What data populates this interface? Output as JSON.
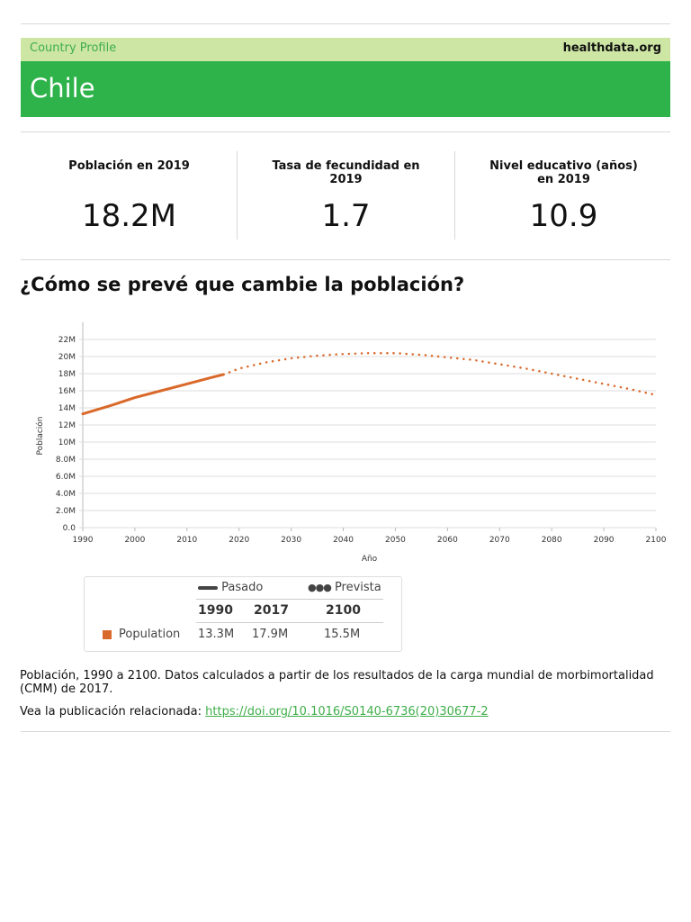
{
  "header": {
    "label": "Country Profile",
    "site": "healthdata.org",
    "country": "Chile"
  },
  "stats": [
    {
      "label": "Población en 2019",
      "value": "18.2M"
    },
    {
      "label": "Tasa de fecundidad en 2019",
      "value": "1.7"
    },
    {
      "label": "Nivel educativo (años) en 2019",
      "value": "10.9"
    }
  ],
  "section_title": "¿Cómo se prevé que cambie la población?",
  "chart_data": {
    "type": "line",
    "xlabel": "Año",
    "ylabel": "Población",
    "x": [
      1990,
      1995,
      2000,
      2005,
      2010,
      2015,
      2017,
      2020,
      2025,
      2030,
      2035,
      2040,
      2045,
      2050,
      2055,
      2060,
      2065,
      2070,
      2075,
      2080,
      2085,
      2090,
      2095,
      2100
    ],
    "series": [
      {
        "name": "Pasado",
        "color": "#d9692a",
        "style": "solid",
        "values": [
          13300000,
          14200000,
          15200000,
          16000000,
          16800000,
          17600000,
          17900000,
          null,
          null,
          null,
          null,
          null,
          null,
          null,
          null,
          null,
          null,
          null,
          null,
          null,
          null,
          null,
          null,
          null
        ]
      },
      {
        "name": "Prevista",
        "color": "#d9692a",
        "style": "dotted",
        "values": [
          null,
          null,
          null,
          null,
          null,
          null,
          17900000,
          18600000,
          19300000,
          19800000,
          20100000,
          20300000,
          20400000,
          20400000,
          20200000,
          19900000,
          19600000,
          19100000,
          18600000,
          18000000,
          17400000,
          16800000,
          16200000,
          15500000
        ]
      }
    ],
    "xlim": [
      1990,
      2100
    ],
    "ylim": [
      0,
      24000000
    ],
    "xticks": [
      1990,
      2000,
      2010,
      2020,
      2030,
      2040,
      2050,
      2060,
      2070,
      2080,
      2090,
      2100
    ],
    "yticks": [
      {
        "value": 0,
        "label": "0.0"
      },
      {
        "value": 2000000,
        "label": "2.0M"
      },
      {
        "value": 4000000,
        "label": "4.0M"
      },
      {
        "value": 6000000,
        "label": "6.0M"
      },
      {
        "value": 8000000,
        "label": "8.0M"
      },
      {
        "value": 10000000,
        "label": "10M"
      },
      {
        "value": 12000000,
        "label": "12M"
      },
      {
        "value": 14000000,
        "label": "14M"
      },
      {
        "value": 16000000,
        "label": "16M"
      },
      {
        "value": 18000000,
        "label": "18M"
      },
      {
        "value": 20000000,
        "label": "20M"
      },
      {
        "value": 22000000,
        "label": "22M"
      }
    ],
    "grid": true
  },
  "table": {
    "columns": [
      "1990",
      "2017",
      "2100"
    ],
    "rows": [
      [
        "Population",
        "13.3M",
        "17.9M",
        "15.5M"
      ]
    ]
  },
  "caption": "Población, 1990 a 2100. Datos calculados a partir de los resultados de la carga mundial de morbimortalidad (CMM) de 2017.",
  "link_intro": "Vea la publicación relacionada:",
  "link": "https://doi.org/10.1016/S0140-6736(20)30677-2"
}
